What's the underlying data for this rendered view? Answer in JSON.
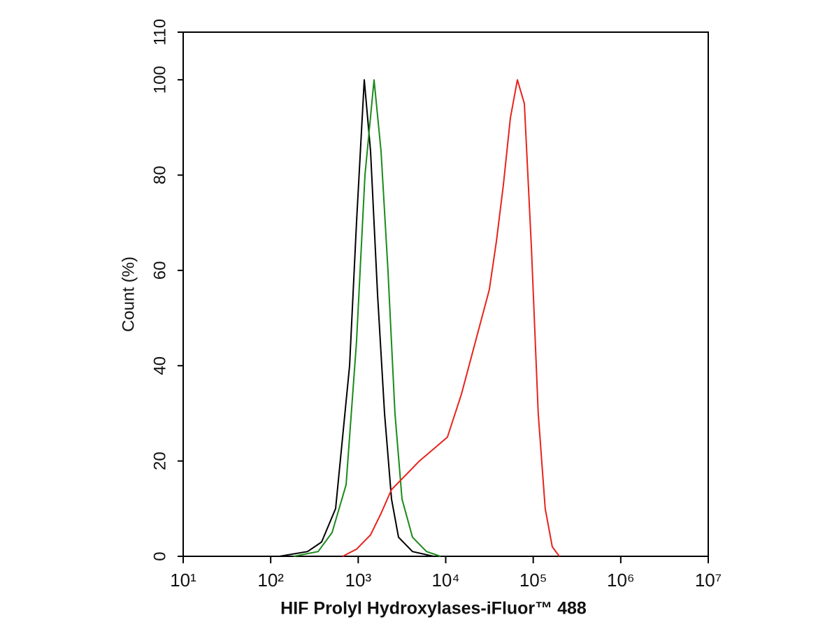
{
  "chart_data": {
    "type": "line",
    "xlabel": "HIF Prolyl Hydroxylases-iFluor™ 488",
    "ylabel": "Count  (%)",
    "xscale": "log",
    "xlim": [
      10,
      10000000
    ],
    "xticks": [
      {
        "value": 10,
        "label": "10¹"
      },
      {
        "value": 100,
        "label": "10²"
      },
      {
        "value": 1000,
        "label": "10³"
      },
      {
        "value": 10000,
        "label": "10⁴"
      },
      {
        "value": 100000,
        "label": "10⁵"
      },
      {
        "value": 1000000,
        "label": "10⁶"
      },
      {
        "value": 10000000,
        "label": "10⁷"
      }
    ],
    "ylim": [
      0,
      110
    ],
    "yticks": [
      0,
      20,
      40,
      60,
      80,
      100,
      110
    ],
    "grid": false,
    "series": [
      {
        "color": "#000000",
        "x": [
          126,
          264,
          382,
          552,
          797,
          957,
          1172,
          1383,
          1663,
          2000,
          2403,
          2890,
          4170,
          7240
        ],
        "values": [
          0,
          1,
          3,
          10,
          40,
          70,
          100,
          85,
          55,
          30,
          12,
          4,
          1,
          0
        ]
      },
      {
        "color": "#1a8a1a",
        "x": [
          183,
          348,
          503,
          727,
          957,
          1194,
          1517,
          1823,
          2190,
          2630,
          3170,
          4170,
          6030,
          8710
        ],
        "values": [
          0,
          1,
          5,
          15,
          45,
          80,
          100,
          85,
          60,
          30,
          12,
          4,
          1,
          0
        ]
      },
      {
        "color": "#e8221b",
        "x": [
          664,
          957,
          1383,
          1823,
          2403,
          3470,
          5010,
          7240,
          10460,
          15100,
          21800,
          31500,
          37900,
          45600,
          54800,
          65900,
          79200,
          95300,
          114000,
          137000,
          165000,
          199000
        ],
        "values": [
          0,
          1.5,
          4.5,
          9,
          14,
          17,
          20,
          22.5,
          25,
          34,
          45,
          56,
          66,
          78,
          92,
          100,
          95,
          65,
          30,
          10,
          2,
          0
        ]
      }
    ]
  }
}
